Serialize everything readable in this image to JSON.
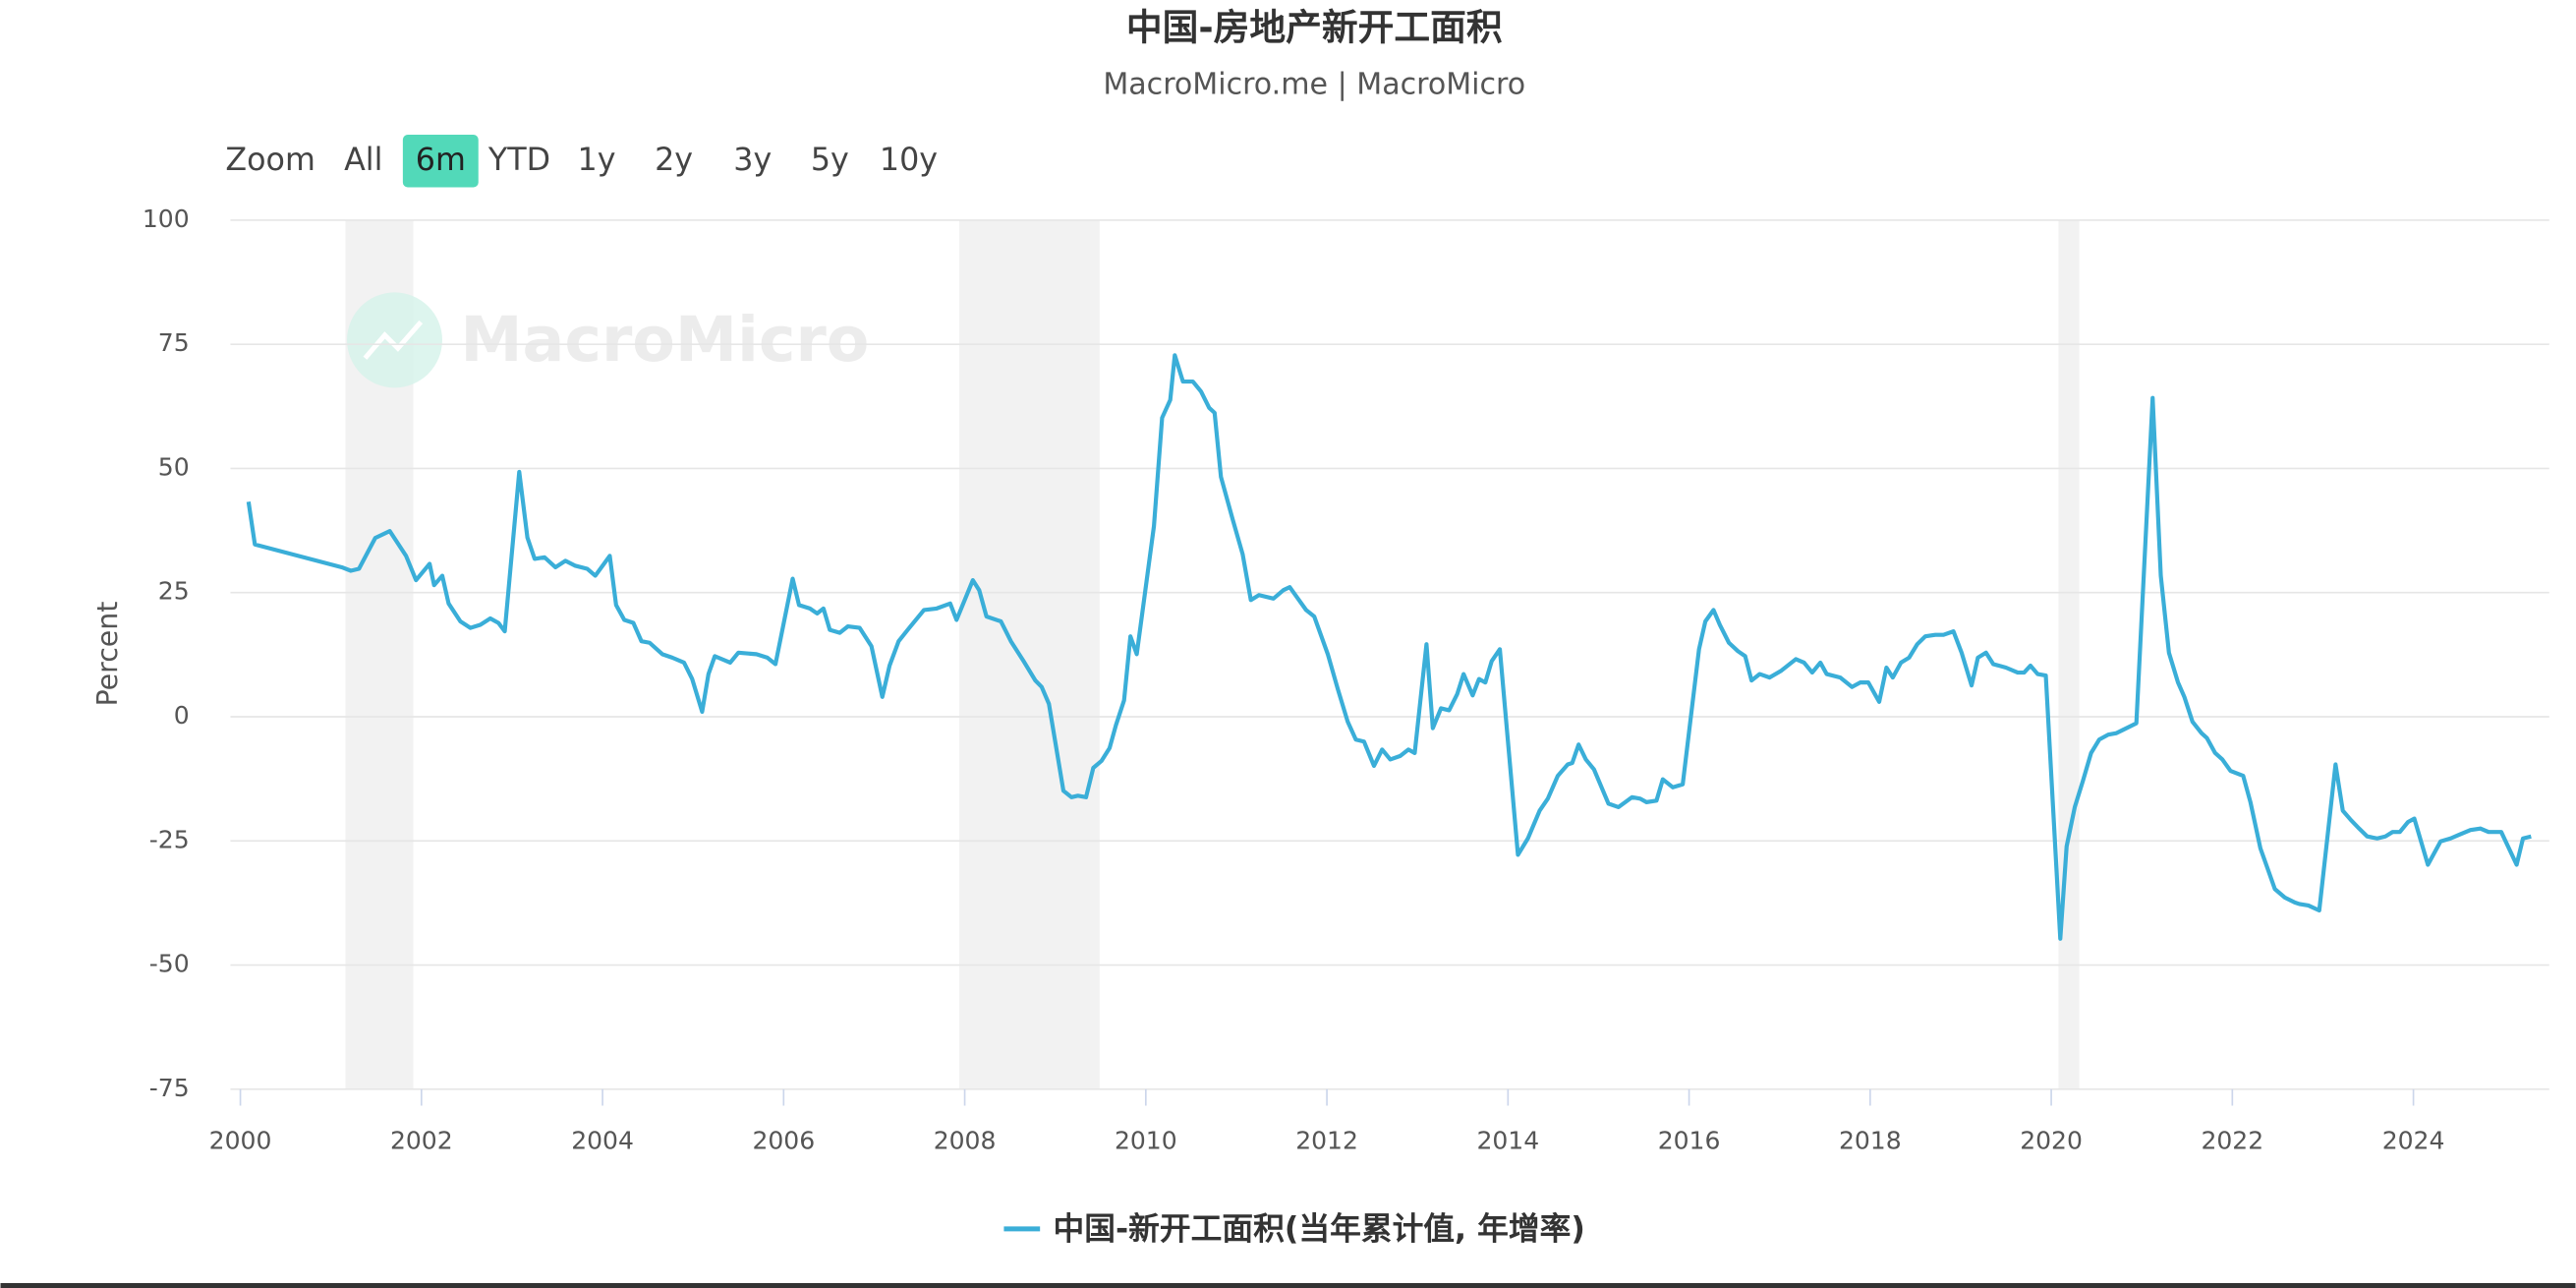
{
  "chart_data": {
    "type": "line",
    "title": "中国-房地产新开工面积",
    "subtitle": "MacroMicro.me | MacroMicro",
    "watermark": "MacroMicro",
    "y_label": "Percent",
    "zoom": {
      "label": "Zoom",
      "buttons": [
        "All",
        "6m",
        "YTD",
        "1y",
        "2y",
        "3y",
        "5y",
        "10y"
      ],
      "selected": 1
    },
    "x": [
      2000.09,
      2000.16,
      2001.12,
      2001.22,
      2001.31,
      2001.49,
      2001.65,
      2001.83,
      2001.94,
      2002.09,
      2002.14,
      2002.23,
      2002.3,
      2002.43,
      2002.54,
      2002.65,
      2002.76,
      2002.85,
      2002.92,
      2003.08,
      2003.17,
      2003.25,
      2003.36,
      2003.48,
      2003.59,
      2003.7,
      2003.83,
      2003.92,
      2004.08,
      2004.15,
      2004.24,
      2004.34,
      2004.43,
      2004.52,
      2004.66,
      2004.77,
      2004.9,
      2004.99,
      2005.1,
      2005.17,
      2005.24,
      2005.41,
      2005.5,
      2005.7,
      2005.82,
      2005.91,
      2006.1,
      2006.17,
      2006.29,
      2006.37,
      2006.44,
      2006.51,
      2006.62,
      2006.71,
      2006.84,
      2006.97,
      2007.09,
      2007.17,
      2007.27,
      2007.37,
      2007.55,
      2007.69,
      2007.84,
      2007.91,
      2008.09,
      2008.16,
      2008.24,
      2008.4,
      2008.51,
      2008.65,
      2008.78,
      2008.85,
      2008.93,
      2009.09,
      2009.18,
      2009.25,
      2009.34,
      2009.42,
      2009.51,
      2009.6,
      2009.67,
      2009.76,
      2009.83,
      2009.9,
      2009.99,
      2010.09,
      2010.18,
      2010.27,
      2010.32,
      2010.41,
      2010.52,
      2010.61,
      2010.7,
      2010.76,
      2010.83,
      2010.96,
      2011.07,
      2011.16,
      2011.25,
      2011.41,
      2011.52,
      2011.59,
      2011.68,
      2011.77,
      2011.86,
      2012.01,
      2012.12,
      2012.23,
      2012.32,
      2012.41,
      2012.52,
      2012.61,
      2012.7,
      2012.81,
      2012.9,
      2012.97,
      2013.1,
      2013.17,
      2013.26,
      2013.35,
      2013.44,
      2013.51,
      2013.61,
      2013.68,
      2013.75,
      2013.82,
      2013.91,
      2014.11,
      2014.22,
      2014.35,
      2014.44,
      2014.55,
      2014.66,
      2014.71,
      2014.78,
      2014.86,
      2014.95,
      2015.11,
      2015.22,
      2015.37,
      2015.46,
      2015.53,
      2015.64,
      2015.71,
      2015.82,
      2015.93,
      2016.11,
      2016.18,
      2016.27,
      2016.34,
      2016.44,
      2016.54,
      2016.62,
      2016.69,
      2016.78,
      2016.89,
      2017.02,
      2017.18,
      2017.27,
      2017.36,
      2017.45,
      2017.52,
      2017.67,
      2017.8,
      2017.89,
      2017.98,
      2018.1,
      2018.18,
      2018.25,
      2018.34,
      2018.43,
      2018.52,
      2018.61,
      2018.72,
      2018.81,
      2018.92,
      2019.01,
      2019.12,
      2019.19,
      2019.28,
      2019.36,
      2019.5,
      2019.63,
      2019.7,
      2019.77,
      2019.85,
      2019.94,
      2020.1,
      2020.17,
      2020.26,
      2020.35,
      2020.44,
      2020.53,
      2020.63,
      2020.72,
      2020.94,
      2021.12,
      2021.21,
      2021.3,
      2021.4,
      2021.47,
      2021.56,
      2021.66,
      2021.72,
      2021.81,
      2021.89,
      2021.98,
      2022.12,
      2022.2,
      2022.31,
      2022.4,
      2022.47,
      2022.58,
      2022.69,
      2022.74,
      2022.84,
      2022.96,
      2023.14,
      2023.22,
      2023.31,
      2023.4,
      2023.49,
      2023.6,
      2023.69,
      2023.77,
      2023.85,
      2023.94,
      2024.01,
      2024.16,
      2024.3,
      2024.41,
      2024.5,
      2024.63,
      2024.74,
      2024.83,
      2024.97,
      2025.14,
      2025.21,
      2025.3
    ],
    "series": [
      {
        "name": "中国-新开工面积(当年累计值, 年增率)",
        "color": "#3aaed8",
        "values": [
          43.3,
          34.7,
          30.1,
          29.4,
          29.8,
          36,
          37.4,
          32.4,
          27.5,
          30.8,
          26.5,
          28.4,
          22.8,
          19.2,
          17.9,
          18.5,
          19.8,
          18.9,
          17.2,
          49.3,
          36.1,
          31.8,
          32.1,
          30.1,
          31.4,
          30.4,
          29.8,
          28.4,
          32.4,
          22.5,
          19.5,
          18.9,
          15.2,
          14.9,
          12.6,
          11.9,
          10.9,
          7.6,
          1,
          8.6,
          12.2,
          10.9,
          12.9,
          12.6,
          11.9,
          10.6,
          27.8,
          22.5,
          21.8,
          20.8,
          21.8,
          17.5,
          16.9,
          18.2,
          17.9,
          14.2,
          4,
          10.3,
          15.2,
          17.5,
          21.5,
          21.8,
          22.8,
          19.5,
          27.5,
          25.5,
          20.2,
          19.2,
          15.2,
          11.2,
          7.3,
          6,
          2.6,
          -14.9,
          -16.2,
          -15.9,
          -16.2,
          -10.3,
          -8.9,
          -6.3,
          -1.7,
          3.3,
          16.2,
          12.6,
          24.8,
          38.4,
          60.2,
          63.8,
          72.8,
          67.5,
          67.5,
          65.5,
          62.2,
          61.2,
          48.3,
          39.7,
          32.7,
          23.5,
          24.5,
          23.8,
          25.5,
          26.1,
          23.8,
          21.5,
          20.2,
          12.6,
          5.6,
          -1,
          -4.6,
          -5,
          -9.9,
          -6.6,
          -8.6,
          -7.9,
          -6.6,
          -7.3,
          14.6,
          -2.3,
          1.7,
          1.3,
          4.6,
          8.6,
          4.3,
          7.6,
          6.9,
          11.2,
          13.6,
          -27.8,
          -24.5,
          -18.9,
          -16.5,
          -11.9,
          -9.6,
          -9.3,
          -5.6,
          -8.6,
          -10.6,
          -17.5,
          -18.2,
          -16.2,
          -16.5,
          -17.2,
          -16.9,
          -12.6,
          -14.2,
          -13.6,
          13.6,
          19.2,
          21.5,
          18.5,
          14.9,
          13.2,
          12.2,
          7.3,
          8.6,
          7.9,
          9.3,
          11.6,
          10.9,
          8.9,
          10.9,
          8.6,
          7.9,
          6,
          6.9,
          6.9,
          3,
          9.9,
          7.9,
          10.9,
          11.9,
          14.6,
          16.2,
          16.5,
          16.5,
          17.2,
          12.9,
          6.3,
          11.9,
          12.9,
          10.6,
          9.9,
          8.9,
          8.9,
          10.3,
          8.6,
          8.3,
          -44.7,
          -26.1,
          -18.2,
          -12.9,
          -7.3,
          -4.6,
          -3.6,
          -3.3,
          -1.3,
          64.2,
          28.4,
          12.9,
          6.9,
          4,
          -1,
          -3.3,
          -4.3,
          -7.3,
          -8.6,
          -10.9,
          -11.9,
          -17.2,
          -26.5,
          -31.1,
          -34.7,
          -36.4,
          -37.4,
          -37.7,
          -38,
          -39,
          -9.6,
          -18.9,
          -20.8,
          -22.5,
          -24.1,
          -24.5,
          -24.1,
          -23.2,
          -23.2,
          -21.2,
          -20.5,
          -29.8,
          -25.1,
          -24.5,
          -23.8,
          -22.8,
          -22.5,
          -23.2,
          -23.2,
          -29.8,
          -24.5,
          -24.1
        ]
      }
    ],
    "shaded_ranges": [
      [
        2001.16,
        2001.91
      ],
      [
        2007.94,
        2009.49
      ],
      [
        2020.08,
        2020.31
      ]
    ],
    "shade_color": "#f2f2f2",
    "xlim": [
      1999.89,
      2025.5
    ],
    "ylim": [
      -75,
      100
    ],
    "xticks": [
      2000,
      2002,
      2004,
      2006,
      2008,
      2010,
      2012,
      2014,
      2016,
      2018,
      2020,
      2022,
      2024
    ],
    "yticks": [
      -75,
      -50,
      -25,
      0,
      25,
      50,
      75,
      100
    ],
    "grid": true
  }
}
